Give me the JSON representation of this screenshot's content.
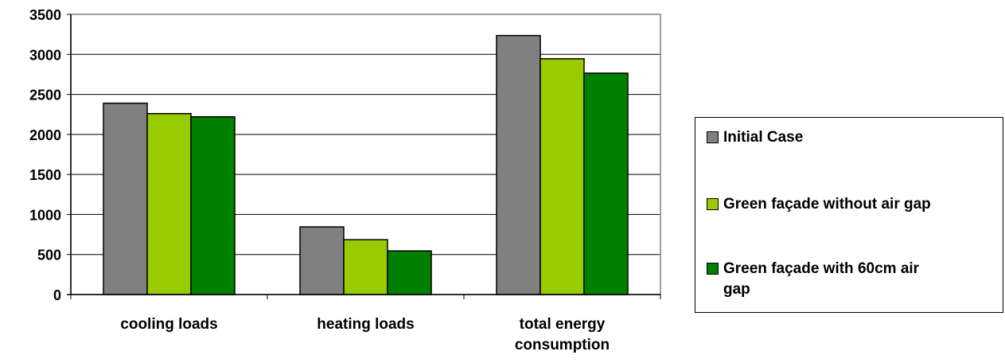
{
  "chart_data": {
    "type": "bar",
    "categories": [
      "cooling loads",
      "heating loads",
      "total energy consumption"
    ],
    "category_lines": [
      [
        "cooling loads"
      ],
      [
        "heating loads"
      ],
      [
        "total energy",
        "consumption"
      ]
    ],
    "series": [
      {
        "name": "Initial Case",
        "color": "#808080",
        "values": [
          2390,
          845,
          3235
        ]
      },
      {
        "name": "Green façade without air gap",
        "color": "#99cc00",
        "values": [
          2260,
          685,
          2945
        ]
      },
      {
        "name": "Green façade with 60cm air gap",
        "color": "#008000",
        "values": [
          2220,
          545,
          2765
        ]
      }
    ],
    "ylim": [
      0,
      3500
    ],
    "yticks": [
      "0",
      "500",
      "1000",
      "1500",
      "2000",
      "2500",
      "3000",
      "3500"
    ],
    "title": "",
    "xlabel": "",
    "ylabel": "",
    "grid": true,
    "legend_position": "right",
    "legend_lines": [
      [
        "Initial Case"
      ],
      [
        "Green façade without air gap"
      ],
      [
        "Green façade with 60cm air",
        "gap"
      ]
    ]
  }
}
